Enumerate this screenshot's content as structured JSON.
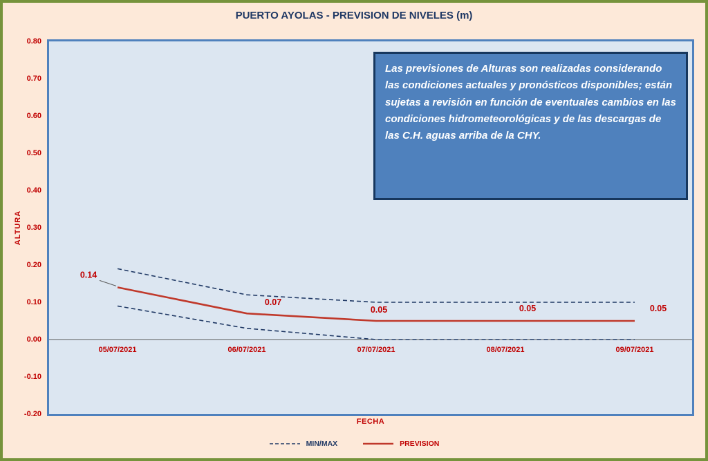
{
  "page": {
    "title": "PUERTO AYOLAS - PREVISION DE NIVELES (m)"
  },
  "note": {
    "text": "Las previsiones de Alturas son realizadas considerando las condiciones actuales y pronósticos disponibles;  están sujetas a revisión en función de eventuales cambios en las condiciones hidrometeorológicas y de las descargas de las C.H. aguas arriba de la CHY."
  },
  "legend": {
    "minmax": "MIN/MAX",
    "prevision": "PREVISION"
  },
  "colors": {
    "background": "#fde9d9",
    "frame_green": "#76933c",
    "plot_bg": "#dce6f1",
    "plot_border": "#4f81bd",
    "note_bg": "#4f81bd",
    "note_border": "#17375e",
    "red_text": "#c00000",
    "red_line": "#c0392b",
    "navy": "#1f3864",
    "axis_gray": "#595959"
  },
  "chart_data": {
    "type": "line",
    "title": "PUERTO AYOLAS - PREVISION DE NIVELES (m)",
    "xlabel": "FECHA",
    "ylabel": "ALTURA",
    "categories": [
      "05/07/2021",
      "06/07/2021",
      "07/07/2021",
      "08/07/2021",
      "09/07/2021"
    ],
    "series": [
      {
        "name": "MAX",
        "values": [
          0.19,
          0.12,
          0.1,
          0.1,
          0.1
        ],
        "style": "dashed",
        "color": "#1f3864"
      },
      {
        "name": "MIN",
        "values": [
          0.09,
          0.03,
          0.0,
          0.0,
          0.0
        ],
        "style": "dashed",
        "color": "#1f3864"
      },
      {
        "name": "PREVISION",
        "values": [
          0.14,
          0.07,
          0.05,
          0.05,
          0.05
        ],
        "style": "solid",
        "color": "#c0392b"
      }
    ],
    "point_labels": [
      "0.14",
      "0.07",
      "0.05",
      "0.05",
      "0.05"
    ],
    "ylim": [
      -0.2,
      0.8
    ],
    "yticks": [
      "0.80",
      "0.70",
      "0.60",
      "0.50",
      "0.40",
      "0.30",
      "0.20",
      "0.10",
      "0.00",
      "-0.10",
      "-0.20"
    ],
    "grid": false,
    "legend_position": "bottom"
  }
}
